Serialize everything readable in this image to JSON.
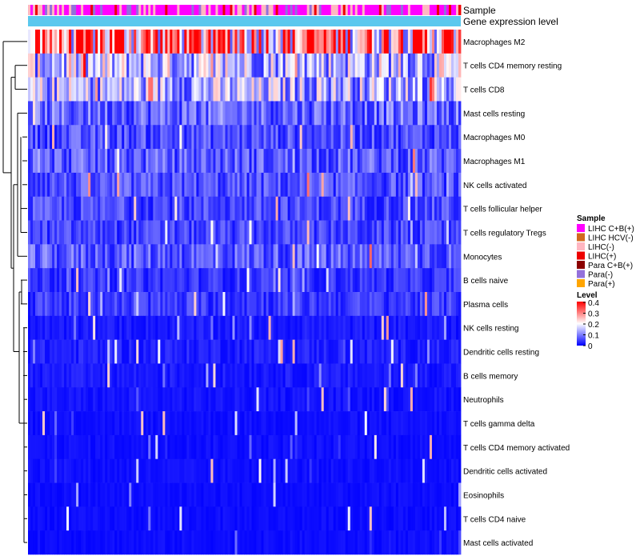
{
  "chart_data": {
    "type": "heatmap",
    "title": "",
    "annotation_tracks": [
      "Sample",
      "Gene expression level"
    ],
    "annotation_colors": {
      "sample_track": "#e830c8",
      "gene_expression_track": "#5bc8ee"
    },
    "rows": [
      {
        "name": "Macrophages M2",
        "mean": 0.3
      },
      {
        "name": "T cells CD4 memory resting",
        "mean": 0.15
      },
      {
        "name": "T cells CD8",
        "mean": 0.14
      },
      {
        "name": "Mast cells resting",
        "mean": 0.08
      },
      {
        "name": "Macrophages M0",
        "mean": 0.06
      },
      {
        "name": "Macrophages M1",
        "mean": 0.07
      },
      {
        "name": "NK cells activated",
        "mean": 0.06
      },
      {
        "name": "T cells follicular helper",
        "mean": 0.055
      },
      {
        "name": "T cells regulatory  Tregs",
        "mean": 0.05
      },
      {
        "name": "Monocytes",
        "mean": 0.07
      },
      {
        "name": "B cells naive",
        "mean": 0.04
      },
      {
        "name": "Plasma cells",
        "mean": 0.045
      },
      {
        "name": "NK cells resting",
        "mean": 0.02
      },
      {
        "name": "Dendritic cells resting",
        "mean": 0.025
      },
      {
        "name": "B cells memory",
        "mean": 0.02
      },
      {
        "name": "Neutrophils",
        "mean": 0.015
      },
      {
        "name": "T cells gamma delta",
        "mean": 0.012
      },
      {
        "name": "T cells CD4 memory activated",
        "mean": 0.012
      },
      {
        "name": "Dendritic cells activated",
        "mean": 0.012
      },
      {
        "name": "Eosinophils",
        "mean": 0.01
      },
      {
        "name": "T cells CD4 naive",
        "mean": 0.01
      },
      {
        "name": "Mast cells activated",
        "mean": 0.01
      }
    ],
    "n_samples": 180,
    "legend_sample": {
      "title": "Sample",
      "items": [
        {
          "label": "LIHC C+B(+)",
          "color": "#ff00ff"
        },
        {
          "label": "LIHC HCV(-)",
          "color": "#d2691e"
        },
        {
          "label": "LIHC(-)",
          "color": "#ffb6c1"
        },
        {
          "label": "LIHC(+)",
          "color": "#ee0000"
        },
        {
          "label": "Para C+B(+)",
          "color": "#8b0000"
        },
        {
          "label": "Para(-)",
          "color": "#9370db"
        },
        {
          "label": "Para(+)",
          "color": "#ffa500"
        }
      ]
    },
    "legend_level": {
      "title": "Level",
      "ticks": [
        "0.4",
        "0.3",
        "0.2",
        "0.1",
        "0"
      ],
      "range": [
        0,
        0.4
      ],
      "colors": [
        "#0000ff",
        "#ffffff",
        "#ff0000"
      ]
    }
  }
}
